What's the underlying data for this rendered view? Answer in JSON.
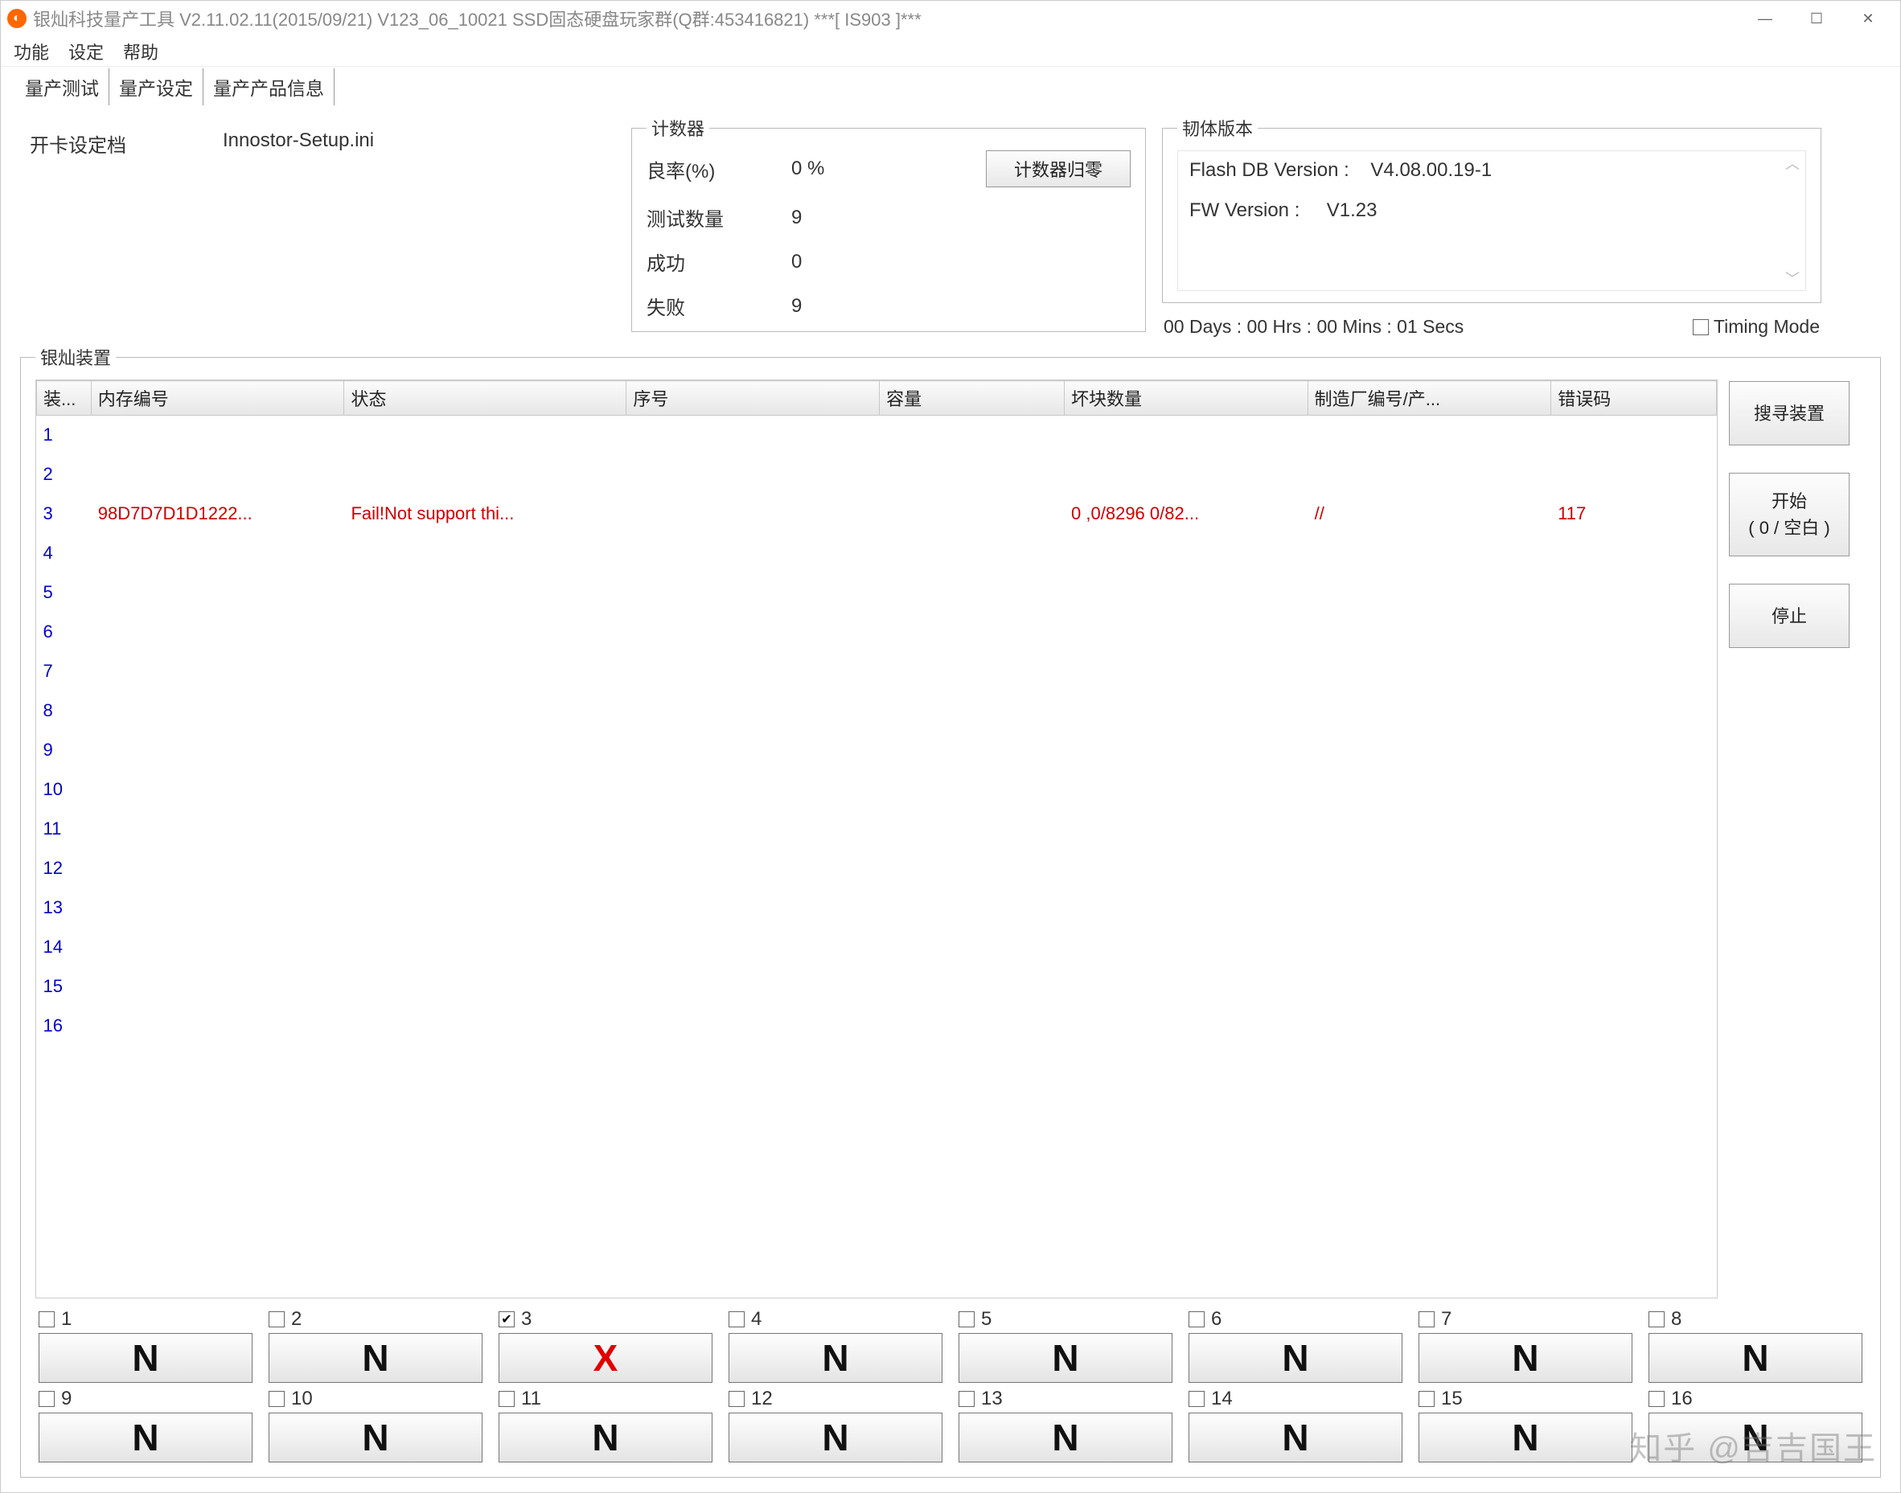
{
  "window": {
    "title": "银灿科技量产工具 V2.11.02.11(2015/09/21) V123_06_10021    SSD固态硬盘玩家群(Q群:453416821)    ***[ IS903 ]***",
    "icon_glyph": "◐"
  },
  "menu": {
    "items": [
      "功能",
      "设定",
      "帮助"
    ]
  },
  "tabs": {
    "items": [
      "量产测试",
      "量产设定",
      "量产产品信息"
    ],
    "active": 0
  },
  "setup": {
    "label": "开卡设定档",
    "file": "Innostor-Setup.ini"
  },
  "counter": {
    "legend": "计数器",
    "reset_btn": "计数器归零",
    "rows": {
      "yield_label": "良率(%)",
      "yield_value": "0 %",
      "tested_label": "测试数量",
      "tested_value": "9",
      "pass_label": "成功",
      "pass_value": "0",
      "fail_label": "失败",
      "fail_value": "9"
    }
  },
  "version": {
    "legend": "韧体版本",
    "flash_db_label": "Flash DB Version :",
    "flash_db_value": "V4.08.00.19-1",
    "fw_label": "FW Version :",
    "fw_value": "V1.23"
  },
  "timer": {
    "text": "00 Days : 00 Hrs : 00 Mins : 01 Secs",
    "timing_mode_label": "Timing Mode",
    "timing_mode_checked": false
  },
  "devices": {
    "legend": "银灿装置",
    "columns": [
      "装...",
      "内存编号",
      "状态",
      "序号",
      "容量",
      "坏块数量",
      "制造厂编号/产...",
      "错误码"
    ],
    "col_widths": [
      "56px",
      "260px",
      "290px",
      "260px",
      "190px",
      "250px",
      "250px",
      "170px"
    ],
    "rows": [
      {
        "idx": "1"
      },
      {
        "idx": "2"
      },
      {
        "idx": "3",
        "mem": "98D7D7D1D1222...",
        "status": "Fail!Not support thi...",
        "serial": "",
        "cap": "",
        "bad": "0 ,0/8296 0/82...",
        "mfg": "//",
        "err": "117",
        "fail": true
      },
      {
        "idx": "4"
      },
      {
        "idx": "5"
      },
      {
        "idx": "6"
      },
      {
        "idx": "7"
      },
      {
        "idx": "8"
      },
      {
        "idx": "9"
      },
      {
        "idx": "10"
      },
      {
        "idx": "11"
      },
      {
        "idx": "12"
      },
      {
        "idx": "13"
      },
      {
        "idx": "14"
      },
      {
        "idx": "15"
      },
      {
        "idx": "16"
      }
    ],
    "side_buttons": {
      "search": "搜寻装置",
      "start_l1": "开始",
      "start_l2": "(  0 / 空白  )",
      "stop": "停止"
    }
  },
  "slots": [
    {
      "n": "1",
      "checked": false,
      "glyph": "N",
      "fail": false
    },
    {
      "n": "2",
      "checked": false,
      "glyph": "N",
      "fail": false
    },
    {
      "n": "3",
      "checked": true,
      "glyph": "X",
      "fail": true
    },
    {
      "n": "4",
      "checked": false,
      "glyph": "N",
      "fail": false
    },
    {
      "n": "5",
      "checked": false,
      "glyph": "N",
      "fail": false
    },
    {
      "n": "6",
      "checked": false,
      "glyph": "N",
      "fail": false
    },
    {
      "n": "7",
      "checked": false,
      "glyph": "N",
      "fail": false
    },
    {
      "n": "8",
      "checked": false,
      "glyph": "N",
      "fail": false
    },
    {
      "n": "9",
      "checked": false,
      "glyph": "N",
      "fail": false
    },
    {
      "n": "10",
      "checked": false,
      "glyph": "N",
      "fail": false
    },
    {
      "n": "11",
      "checked": false,
      "glyph": "N",
      "fail": false
    },
    {
      "n": "12",
      "checked": false,
      "glyph": "N",
      "fail": false
    },
    {
      "n": "13",
      "checked": false,
      "glyph": "N",
      "fail": false
    },
    {
      "n": "14",
      "checked": false,
      "glyph": "N",
      "fail": false
    },
    {
      "n": "15",
      "checked": false,
      "glyph": "N",
      "fail": false
    },
    {
      "n": "16",
      "checked": false,
      "glyph": "N",
      "fail": false
    }
  ],
  "colors": {
    "row_normal": "#0000cc",
    "row_fail": "#cc0000",
    "slot_fail": "#e00000",
    "accent": "#ff6600"
  },
  "watermark": "知乎 @吉吉国王"
}
